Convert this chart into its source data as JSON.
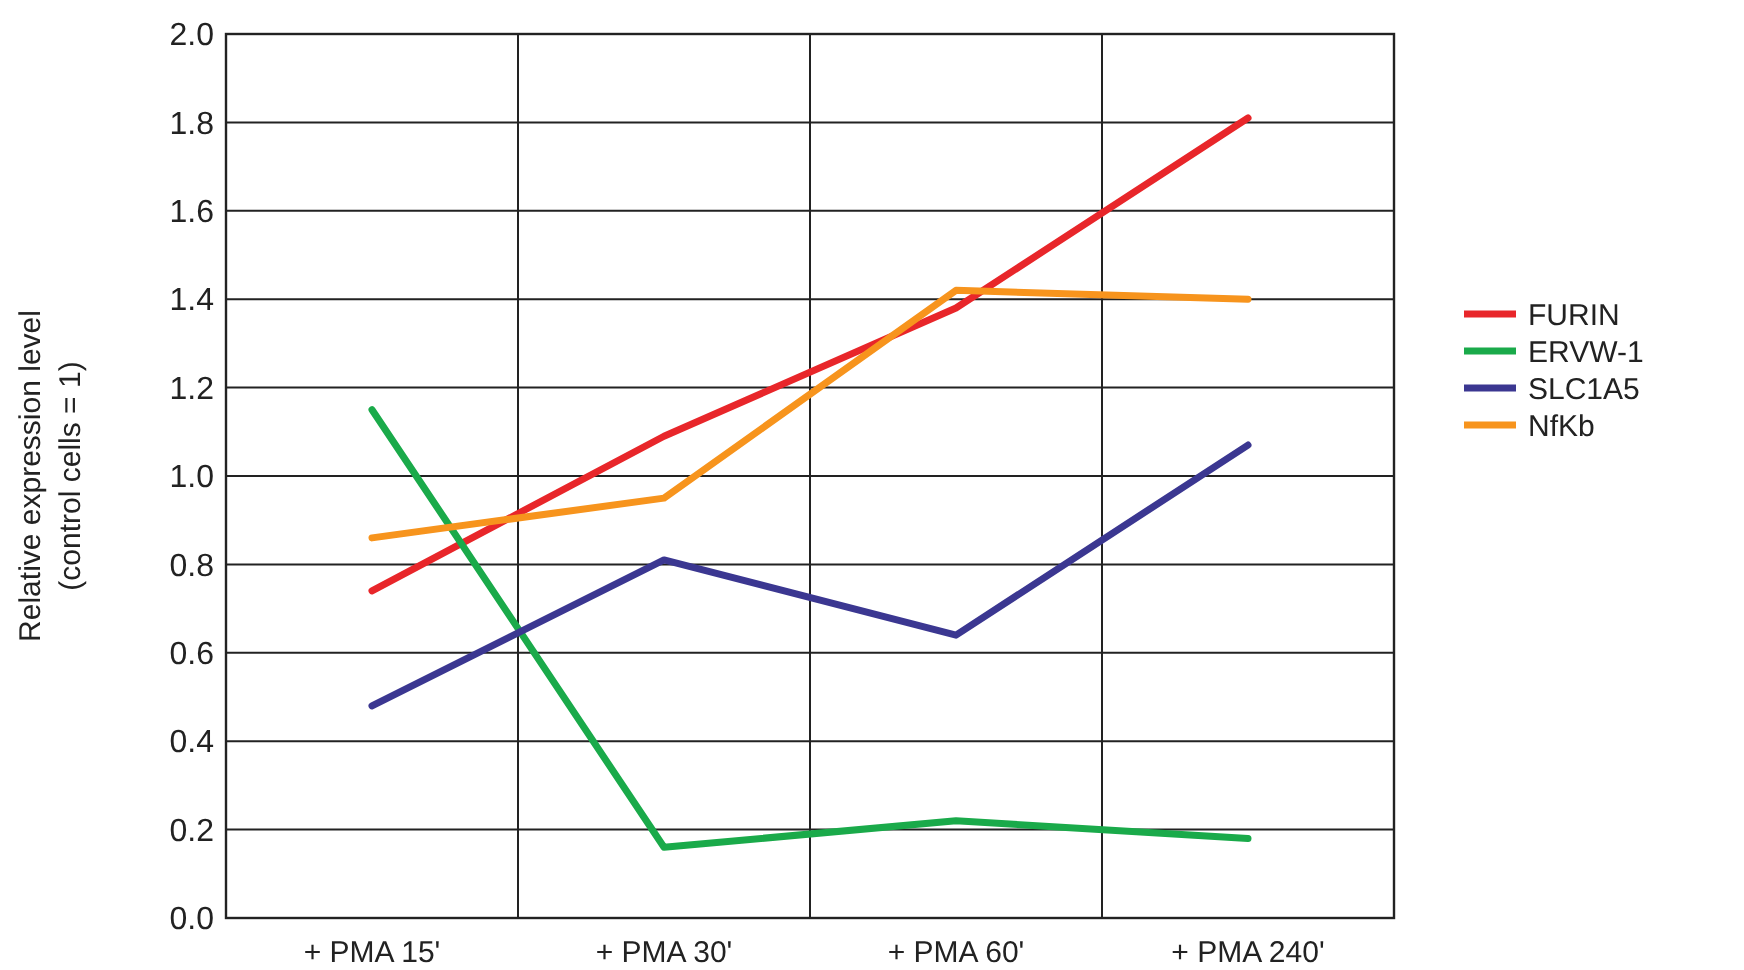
{
  "chart_data": {
    "type": "line",
    "ylabel": "Relative expression level\n(control cells = 1)",
    "categories": [
      "+ PMA 15'",
      "+ PMA 30'",
      "+ PMA 60'",
      "+ PMA 240'"
    ],
    "series": [
      {
        "name": "FURIN",
        "color": "#e8262a",
        "values": [
          0.74,
          1.09,
          1.38,
          1.81
        ]
      },
      {
        "name": "ERVW-1",
        "color": "#1aaa4a",
        "values": [
          1.15,
          0.16,
          0.22,
          0.18
        ]
      },
      {
        "name": "SLC1A5",
        "color": "#3b3791",
        "values": [
          0.48,
          0.81,
          0.64,
          1.07
        ]
      },
      {
        "name": "NfKb",
        "color": "#f7941d",
        "values": [
          0.86,
          0.95,
          1.42,
          1.4
        ]
      }
    ],
    "ylim": [
      0,
      2
    ],
    "yticks": [
      {
        "value": 0,
        "label": "0.0"
      },
      0.2,
      0.4,
      0.6,
      0.8,
      {
        "value": 1,
        "label": "1.0"
      },
      1.2,
      1.4,
      1.6,
      1.8,
      {
        "value": 2,
        "label": "2.0"
      }
    ],
    "grid": true,
    "legend": "right",
    "marker": "none",
    "line_style": "solid"
  }
}
